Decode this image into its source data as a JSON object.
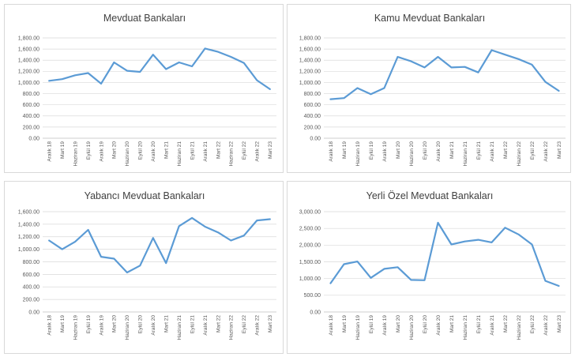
{
  "colors": {
    "line": "#5b9bd5",
    "grid": "#d9d9d9",
    "text": "#595959"
  },
  "chart_data": [
    {
      "type": "line",
      "title": "Mevduat Bankaları",
      "categories": [
        "Aralık 18",
        "Mart 19",
        "Haziran 19",
        "Eylül 19",
        "Aralık 19",
        "Mart 20",
        "Haziran 20",
        "Eylül 20",
        "Aralık 20",
        "Mart 21",
        "Haziran 21",
        "Eylül 21",
        "Aralık 21",
        "Mart 22",
        "Haziran 22",
        "Eylül 22",
        "Aralık 22",
        "Mart 23"
      ],
      "series": [
        {
          "values": [
            1030,
            1060,
            1130,
            1170,
            980,
            1360,
            1210,
            1190,
            1500,
            1240,
            1360,
            1290,
            1610,
            1550,
            1460,
            1350,
            1040,
            880
          ]
        }
      ],
      "ylim": [
        0,
        1800
      ],
      "yticks": [
        "0.00",
        "200.00",
        "400.00",
        "600.00",
        "800.00",
        "1,000.00",
        "1,200.00",
        "1,400.00",
        "1,600.00",
        "1,800.00"
      ],
      "xlabel": "",
      "ylabel": "",
      "grid": true
    },
    {
      "type": "line",
      "title": "Kamu Mevduat Bankaları",
      "categories": [
        "Aralık 18",
        "Mart 19",
        "Haziran 19",
        "Eylül 19",
        "Aralık 19",
        "Mart 20",
        "Haziran 20",
        "Eylül 20",
        "Aralık 20",
        "Mart 21",
        "Haziran 21",
        "Eylül 21",
        "Aralık 21",
        "Mart 22",
        "Haziran 22",
        "Eylül 22",
        "Aralık 22",
        "Mart 23"
      ],
      "series": [
        {
          "values": [
            700,
            720,
            900,
            790,
            900,
            1460,
            1380,
            1270,
            1460,
            1270,
            1280,
            1180,
            1580,
            1500,
            1420,
            1320,
            1010,
            850
          ]
        }
      ],
      "ylim": [
        0,
        1800
      ],
      "yticks": [
        "0.00",
        "200.00",
        "400.00",
        "600.00",
        "800.00",
        "1,000.00",
        "1,200.00",
        "1,400.00",
        "1,600.00",
        "1,800.00"
      ],
      "xlabel": "",
      "ylabel": "",
      "grid": true
    },
    {
      "type": "line",
      "title": "Yabancı Mevduat Bankaları",
      "categories": [
        "Aralık 18",
        "Mart 19",
        "Haziran 19",
        "Eylül 19",
        "Aralık 19",
        "Mart 20",
        "Haziran 20",
        "Eylül 20",
        "Aralık 20",
        "Mart 21",
        "Haziran 21",
        "Eylül 21",
        "Aralık 21",
        "Mart 22",
        "Haziran 22",
        "Eylül 22",
        "Aralık 22",
        "Mart 23"
      ],
      "series": [
        {
          "values": [
            1140,
            1000,
            1120,
            1310,
            880,
            850,
            630,
            740,
            1180,
            780,
            1370,
            1500,
            1360,
            1270,
            1140,
            1220,
            1460,
            1480
          ]
        }
      ],
      "ylim": [
        0,
        1600
      ],
      "yticks": [
        "0.00",
        "200.00",
        "400.00",
        "600.00",
        "800.00",
        "1,000.00",
        "1,200.00",
        "1,400.00",
        "1,600.00"
      ],
      "xlabel": "",
      "ylabel": "",
      "grid": true
    },
    {
      "type": "line",
      "title": "Yerli Özel Mevduat Bankaları",
      "categories": [
        "Aralık 18",
        "Mart 19",
        "Haziran 19",
        "Eylül 19",
        "Aralık 19",
        "Mart 20",
        "Haziran 20",
        "Eylül 20",
        "Aralık 20",
        "Mart 21",
        "Haziran 21",
        "Eylül 21",
        "Aralık 21",
        "Mart 22",
        "Haziran 22",
        "Eylül 22",
        "Aralık 22",
        "Mart 23"
      ],
      "series": [
        {
          "values": [
            860,
            1430,
            1510,
            1020,
            1290,
            1340,
            960,
            950,
            2670,
            2020,
            2110,
            2160,
            2080,
            2520,
            2320,
            2020,
            930,
            780
          ]
        }
      ],
      "ylim": [
        0,
        3000
      ],
      "yticks": [
        "0.00",
        "500.00",
        "1,000.00",
        "1,500.00",
        "2,000.00",
        "2,500.00",
        "3,000.00"
      ],
      "xlabel": "",
      "ylabel": "",
      "grid": true
    }
  ]
}
